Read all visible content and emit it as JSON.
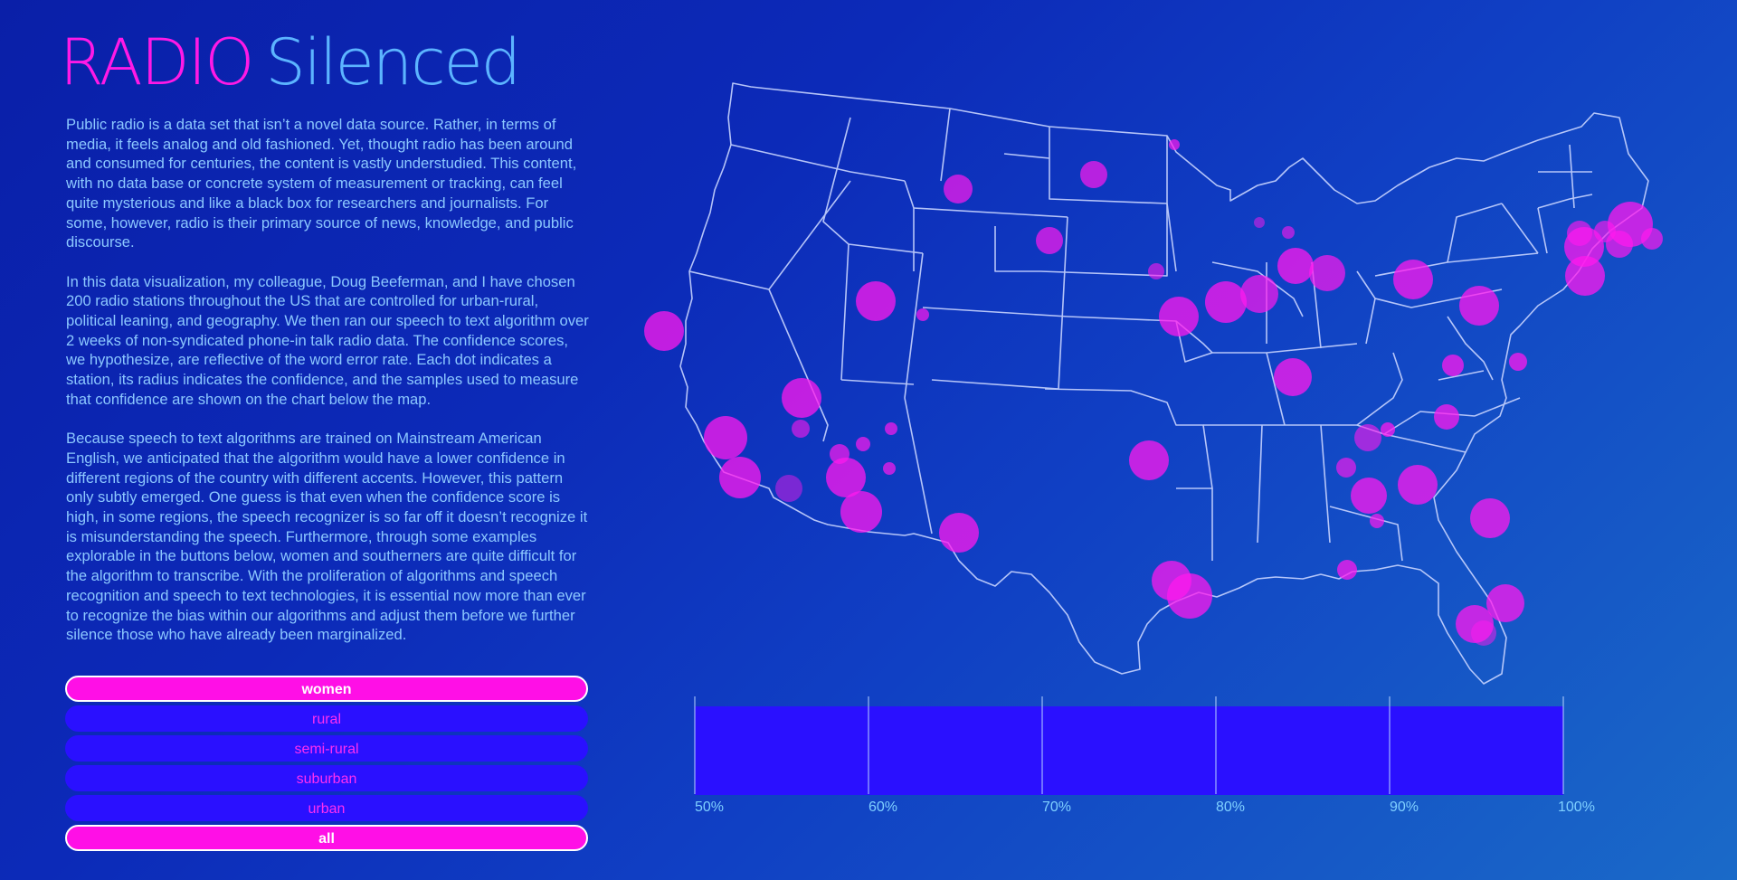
{
  "header": {
    "title_part1": "RADIO",
    "title_part2": "Silenced"
  },
  "intro": {
    "p1": "Public radio is a data set that isn’t a novel data source. Rather, in terms of media, it feels analog and old fashioned. Yet, thought radio has been around and consumed for centuries, the content is vastly understudied. This content, with no data base or concrete system of measurement or tracking, can feel quite mysterious and like a black box for researchers and journalists. For some, however, radio is their primary source of news, knowledge, and public discourse.",
    "p2": "In this data visualization, my colleague, Doug Beeferman, and I have chosen 200 radio stations throughout the US that are controlled for urban-rural, political leaning, and geography. We then ran our speech to text algorithm over 2 weeks of non-syndicated phone-in talk radio data. The confidence scores, we hypothesize, are reflective of the word error rate. Each dot indicates a station, its radius indicates the confidence, and the samples used to measure that confidence are shown on the chart below the map.",
    "p3": "Because speech to text algorithms are trained on Mainstream American English, we anticipated that the algorithm would have a lower confidence in different regions of the country with different accents. However, this pattern only subtly emerged. One guess is that even when the confidence score is high, in some regions, the speech recognizer is so far off it doesn’t recognize it is misunderstanding the speech. Furthermore, through some examples explorable in the buttons below, women and southerners are quite difficult for the algorithm to transcribe. With the proliferation of algorithms and speech recognition and speech to text technologies, it is essential now more than ever to recognize the bias within our algorithms and adjust them before we further silence those who have already been marginalized."
  },
  "filters": {
    "women": "women",
    "rural": "rural",
    "semi_rural": "semi-rural",
    "suburban": "suburban",
    "urban": "urban",
    "all": "all"
  },
  "axis": {
    "ticks": [
      "50%",
      "60%",
      "70%",
      "80%",
      "90%",
      "100%"
    ]
  },
  "colors": {
    "accent": "#ff0fe6",
    "inactive_button": "#2a10ff",
    "text": "#8cc8ff",
    "title_secondary": "#5cb4ff",
    "bar_fill": "#2a10ff"
  },
  "icons": {
    "stations": "station-dot"
  }
}
